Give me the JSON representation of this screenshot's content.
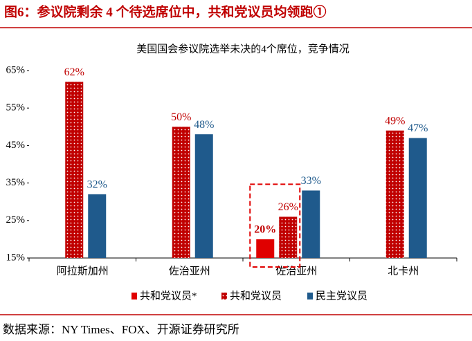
{
  "header": {
    "title": "图6：参议院剩余 4 个待选席位中，共和党议员均领跑①"
  },
  "chart_data": {
    "type": "bar",
    "title": "美国国会参议院选举未决的4个席位，竞争情况",
    "categories": [
      "阿拉斯加州",
      "佐治亚州",
      "佐治亚州",
      "北卡州"
    ],
    "series": [
      {
        "name": "共和党议员*",
        "color": "#e00000",
        "pattern": "solid",
        "values": [
          null,
          null,
          20,
          null
        ],
        "value_labels": [
          null,
          null,
          "20%",
          null
        ]
      },
      {
        "name": "共和党议员",
        "color": "#c00000",
        "pattern": "dotted",
        "values": [
          62,
          50,
          26,
          49
        ],
        "value_labels": [
          "62%",
          "50%",
          "26%",
          "49%"
        ]
      },
      {
        "name": "民主党议员",
        "color": "#1f5a8c",
        "pattern": "solid",
        "values": [
          32,
          48,
          33,
          47
        ],
        "value_labels": [
          "32%",
          "48%",
          "33%",
          "47%"
        ]
      }
    ],
    "ylim": [
      15,
      65
    ],
    "yticks": [
      {
        "value": 15,
        "label": "15%"
      },
      {
        "value": 25,
        "label": "25%"
      },
      {
        "value": 35,
        "label": "35%"
      },
      {
        "value": 45,
        "label": "45%"
      },
      {
        "value": 55,
        "label": "55%"
      },
      {
        "value": 65,
        "label": "65%"
      }
    ],
    "grid": false,
    "legend": "bottom"
  },
  "footer": {
    "source": "数据来源：NY Times、FOX、开源证券研究所"
  }
}
